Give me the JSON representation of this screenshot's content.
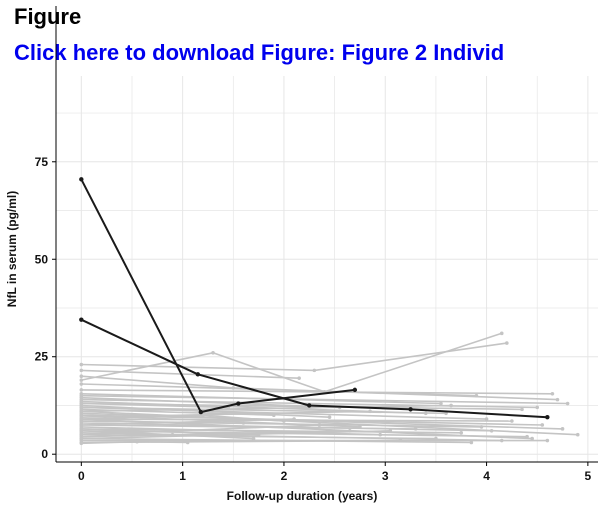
{
  "header": {
    "title": "Figure",
    "link_text": "Click here to download Figure: Figure 2 Individ"
  },
  "chart_data": {
    "type": "line",
    "xlabel": "Follow-up duration (years)",
    "ylabel": "NfL in serum (pg/ml)",
    "xlim": [
      -0.25,
      5.1
    ],
    "ylim": [
      -2,
      97
    ],
    "x_ticks": [
      0,
      1,
      2,
      3,
      4,
      5
    ],
    "y_ticks": [
      0,
      25,
      50,
      75
    ],
    "grid": true,
    "colors": {
      "highlight": "#1a1a1a",
      "background": "#c4c4c4",
      "grid": "#e6e6e6"
    },
    "highlight_series": [
      {
        "x": [
          0,
          1.18,
          1.55,
          2.7
        ],
        "y": [
          70.5,
          10.8,
          13,
          16.5
        ]
      },
      {
        "x": [
          0,
          1.15,
          2.25,
          3.25,
          4.6
        ],
        "y": [
          34.5,
          20.5,
          12.5,
          11.5,
          9.5
        ]
      }
    ],
    "background_series": [
      {
        "x": [
          0,
          1.3,
          2.4,
          4.15
        ],
        "y": [
          19,
          26,
          16,
          31
        ]
      },
      {
        "x": [
          0,
          2.3,
          4.2
        ],
        "y": [
          23,
          21.5,
          28.5
        ]
      },
      {
        "x": [
          0,
          2.15
        ],
        "y": [
          21.5,
          19.5
        ]
      },
      {
        "x": [
          0,
          1.5,
          4.7
        ],
        "y": [
          20,
          17,
          14
        ]
      },
      {
        "x": [
          0,
          3.9
        ],
        "y": [
          18,
          15
        ]
      },
      {
        "x": [
          0,
          4.65
        ],
        "y": [
          16.5,
          15.5
        ]
      },
      {
        "x": [
          0,
          4.8
        ],
        "y": [
          15,
          13
        ]
      },
      {
        "x": [
          0,
          4.5
        ],
        "y": [
          14,
          12
        ]
      },
      {
        "x": [
          0,
          4.35
        ],
        "y": [
          13,
          11.5
        ]
      },
      {
        "x": [
          0,
          3.6
        ],
        "y": [
          12,
          10.5
        ]
      },
      {
        "x": [
          0,
          4.9
        ],
        "y": [
          11,
          5
        ]
      },
      {
        "x": [
          0,
          4.75
        ],
        "y": [
          10.5,
          6.5
        ]
      },
      {
        "x": [
          0,
          4.55
        ],
        "y": [
          10,
          7.5
        ]
      },
      {
        "x": [
          0,
          4.25
        ],
        "y": [
          9,
          8.5
        ]
      },
      {
        "x": [
          0,
          3.95
        ],
        "y": [
          8.5,
          7
        ]
      },
      {
        "x": [
          0,
          4.05
        ],
        "y": [
          8,
          6
        ]
      },
      {
        "x": [
          0,
          3.3
        ],
        "y": [
          7.5,
          6.5
        ]
      },
      {
        "x": [
          0,
          2.95
        ],
        "y": [
          7,
          5
        ]
      },
      {
        "x": [
          0,
          3.75
        ],
        "y": [
          6.5,
          5.5
        ]
      },
      {
        "x": [
          0,
          4.4
        ],
        "y": [
          6,
          4.5
        ]
      },
      {
        "x": [
          0,
          4.15
        ],
        "y": [
          5.5,
          3.5
        ]
      },
      {
        "x": [
          0,
          3.5
        ],
        "y": [
          5,
          4
        ]
      },
      {
        "x": [
          0,
          2.65
        ],
        "y": [
          4.5,
          6
        ]
      },
      {
        "x": [
          0,
          3.85
        ],
        "y": [
          4,
          3
        ]
      },
      {
        "x": [
          0,
          4.6
        ],
        "y": [
          3.5,
          3.5
        ]
      },
      {
        "x": [
          0,
          3.15
        ],
        "y": [
          3,
          3.5
        ]
      },
      {
        "x": [
          0,
          2.45
        ],
        "y": [
          12.5,
          9.5
        ]
      },
      {
        "x": [
          0,
          1.9
        ],
        "y": [
          11.5,
          10
        ]
      },
      {
        "x": [
          0,
          2.85
        ],
        "y": [
          9.5,
          11
        ]
      },
      {
        "x": [
          0,
          1.6
        ],
        "y": [
          8.5,
          8
        ]
      },
      {
        "x": [
          0,
          2.1
        ],
        "y": [
          7.5,
          9
        ]
      },
      {
        "x": [
          0,
          3.4
        ],
        "y": [
          13.5,
          10.5
        ]
      },
      {
        "x": [
          0,
          4.0
        ],
        "y": [
          12,
          9
        ]
      },
      {
        "x": [
          0,
          2.75
        ],
        "y": [
          10,
          7
        ]
      },
      {
        "x": [
          0,
          3.65
        ],
        "y": [
          11,
          12.5
        ]
      },
      {
        "x": [
          0,
          1.75
        ],
        "y": [
          6.5,
          5
        ]
      },
      {
        "x": [
          0,
          2.35
        ],
        "y": [
          5,
          7.5
        ]
      },
      {
        "x": [
          0,
          3.05
        ],
        "y": [
          4,
          6
        ]
      },
      {
        "x": [
          0,
          4.45
        ],
        "y": [
          9,
          4
        ]
      },
      {
        "x": [
          0,
          2.55
        ],
        "y": [
          14.5,
          12
        ]
      },
      {
        "x": [
          0,
          1.45
        ],
        "y": [
          13,
          12
        ]
      },
      {
        "x": [
          0,
          3.55
        ],
        "y": [
          15.5,
          13
        ]
      },
      {
        "x": [
          0,
          0.55,
          1.05
        ],
        "y": [
          2.8,
          3.2,
          3
        ]
      },
      {
        "x": [
          0,
          0.9,
          1.7
        ],
        "y": [
          6,
          5,
          4
        ]
      },
      {
        "x": [
          0,
          1.2,
          2.0
        ],
        "y": [
          9,
          10,
          8.5
        ]
      }
    ]
  }
}
